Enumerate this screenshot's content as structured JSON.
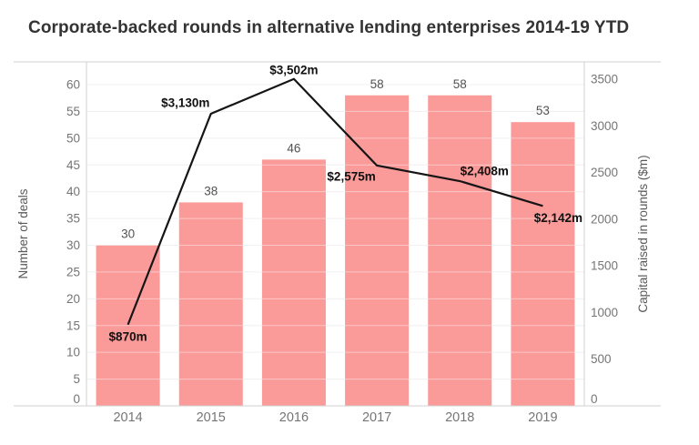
{
  "title": "Corporate-backed rounds in alternative lending enterprises 2014-19 YTD",
  "colors": {
    "bar": "#fa9a99",
    "line": "#151515",
    "grid": "#e7e7e7",
    "grid_over_bars": "rgba(255,255,255,0.45)",
    "axis_line": "#d0d0d0",
    "tick_label": "#757575",
    "bar_value_label": "#525252",
    "line_value_label": "#111111",
    "axis_title": "#595959",
    "title": "#333333"
  },
  "chart_data": {
    "type": "bar+line",
    "title": "Corporate-backed rounds in alternative lending enterprises 2014-19 YTD",
    "categories": [
      "2014",
      "2015",
      "2016",
      "2017",
      "2018",
      "2019"
    ],
    "series": [
      {
        "name": "Number of deals",
        "type": "bar",
        "axis": "left",
        "values": [
          30,
          38,
          46,
          58,
          58,
          53
        ],
        "value_labels": [
          "30",
          "38",
          "46",
          "58",
          "58",
          "53"
        ]
      },
      {
        "name": "Capital raised in rounds ($m)",
        "type": "line",
        "axis": "right",
        "values": [
          870,
          3130,
          3502,
          2575,
          2408,
          2142
        ],
        "value_labels": [
          "$870m",
          "$3,130m",
          "$3,502m",
          "$2,575m",
          "$2,408m",
          "$2,142m"
        ],
        "label_offsets": [
          [
            0,
            13
          ],
          [
            -28,
            -12
          ],
          [
            0,
            -10
          ],
          [
            -28,
            12
          ],
          [
            27,
            -11
          ],
          [
            17,
            13
          ]
        ]
      }
    ],
    "left_axis": {
      "title": "Number of deals",
      "ticks": [
        0,
        5,
        10,
        15,
        20,
        25,
        30,
        35,
        40,
        45,
        50,
        55,
        60
      ],
      "tick_max": 60,
      "range": [
        0,
        64.3
      ]
    },
    "right_axis": {
      "title": "Capital raised in rounds ($m)",
      "ticks": [
        0,
        500,
        1000,
        1500,
        2000,
        2500,
        3000,
        3500
      ],
      "tick_max": 3500,
      "range": [
        0,
        3690
      ]
    },
    "grid": true,
    "legend": "none"
  }
}
